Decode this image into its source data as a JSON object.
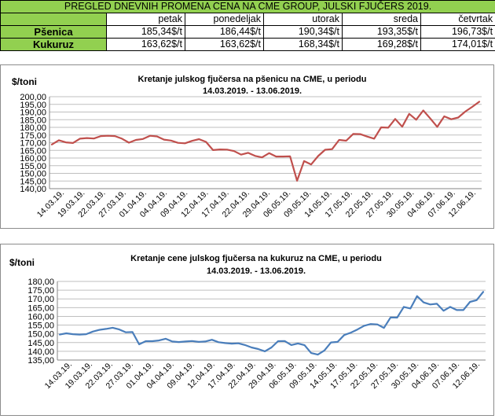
{
  "table": {
    "title": "PREGLED DNEVNIH PROMENA CENA NA CME GROUP, JULSKI  FJUČERS 2019.",
    "days": [
      "petak",
      "ponedeljak",
      "utorak",
      "sreda",
      "četvrtak"
    ],
    "rows": [
      {
        "name": "Pšenica",
        "values": [
          "185,34$/t",
          "186,44$/t",
          "190,34$/t",
          "193,35$/t",
          "196,73$/t"
        ]
      },
      {
        "name": "Kukuruz",
        "values": [
          "163,62$/t",
          "163,62$/t",
          "168,34$/t",
          "169,28$/t",
          "174,01$/t"
        ]
      }
    ]
  },
  "chart_data": [
    {
      "type": "line",
      "title_line1": "Kretanje julskog fjučersa na  pšenicu na CME, u periodu",
      "title_line2": "14.03.2019. - 13.06.2019.",
      "ylabel": "$/toni",
      "ylim": [
        140,
        200
      ],
      "y_ticks": [
        "140,00",
        "145,00",
        "150,00",
        "155,00",
        "160,00",
        "165,00",
        "170,00",
        "175,00",
        "180,00",
        "185,00",
        "190,00",
        "195,00",
        "200,00"
      ],
      "x_tick_labels": [
        "14.03.19.",
        "19.03.19.",
        "22.03.19.",
        "27.03.19.",
        "01.04.19.",
        "04.04.19.",
        "09.04.19.",
        "12.04.19.",
        "17.04.19.",
        "22.04.19.",
        "29.04.19.",
        "06.05.19.",
        "09.05.19.",
        "14.05.19.",
        "17.05.19.",
        "22.05.19.",
        "27.05.19.",
        "30.05.19.",
        "04.06.19.",
        "07.06.19.",
        "12.06.19."
      ],
      "grid": true,
      "color": "#c0504d",
      "values": [
        168.8,
        171.6,
        170.2,
        169.8,
        172.6,
        173.0,
        172.7,
        174.3,
        174.5,
        174.3,
        172.6,
        170.0,
        171.8,
        172.4,
        174.5,
        174.1,
        172.0,
        171.4,
        169.9,
        169.6,
        171.2,
        172.3,
        170.5,
        165.2,
        165.6,
        165.5,
        164.5,
        162.2,
        163.4,
        161.4,
        160.4,
        163.2,
        161.0,
        161.0,
        161.1,
        145.2,
        158.0,
        155.8,
        161.3,
        165.4,
        165.8,
        171.8,
        171.3,
        175.7,
        175.6,
        174.0,
        172.6,
        180.0,
        179.8,
        185.5,
        180.4,
        188.8,
        185.0,
        191.0,
        185.8,
        180.3,
        187.2,
        185.3,
        186.4,
        190.3,
        193.4,
        196.7
      ]
    },
    {
      "type": "line",
      "title_line1": "Kretanje cene julskog fjučersa na  kukuruz na CME, u periodu",
      "title_line2": "14.03.2019. - 13.06.2019.",
      "ylabel": "$/toni",
      "ylim": [
        135,
        180
      ],
      "y_ticks": [
        "135,00",
        "140,00",
        "145,00",
        "150,00",
        "155,00",
        "160,00",
        "165,00",
        "170,00",
        "175,00",
        "180,00"
      ],
      "x_tick_labels": [
        "14.03.19.",
        "19.03.19.",
        "22.03.19.",
        "27.03.19.",
        "01.04.19.",
        "04.04.19.",
        "09.04.19.",
        "12.04.19.",
        "17.04.19.",
        "22.04.19.",
        "29.04.19.",
        "06.05.19.",
        "09.05.19.",
        "14.05.19.",
        "17.05.19.",
        "22.05.19.",
        "27.05.19.",
        "30.05.19.",
        "04.06.19.",
        "07.06.19.",
        "12.06.19."
      ],
      "grid": true,
      "color": "#4a7ebb",
      "values": [
        149.6,
        150.3,
        149.8,
        149.6,
        149.8,
        151.3,
        152.3,
        152.8,
        153.5,
        152.5,
        150.9,
        151.0,
        144.0,
        145.8,
        145.8,
        146.2,
        147.2,
        145.6,
        145.3,
        145.6,
        145.9,
        145.4,
        145.6,
        146.6,
        145.2,
        144.7,
        144.4,
        144.6,
        143.6,
        142.2,
        141.3,
        140.0,
        142.2,
        145.8,
        145.9,
        143.6,
        144.5,
        143.5,
        139.0,
        138.1,
        140.5,
        145.1,
        145.4,
        149.3,
        150.7,
        152.5,
        154.6,
        155.6,
        155.4,
        153.4,
        159.4,
        159.3,
        165.4,
        164.5,
        171.6,
        168.0,
        166.8,
        167.2,
        163.2,
        165.4,
        163.6,
        163.6,
        168.3,
        169.3,
        174.0
      ]
    }
  ]
}
